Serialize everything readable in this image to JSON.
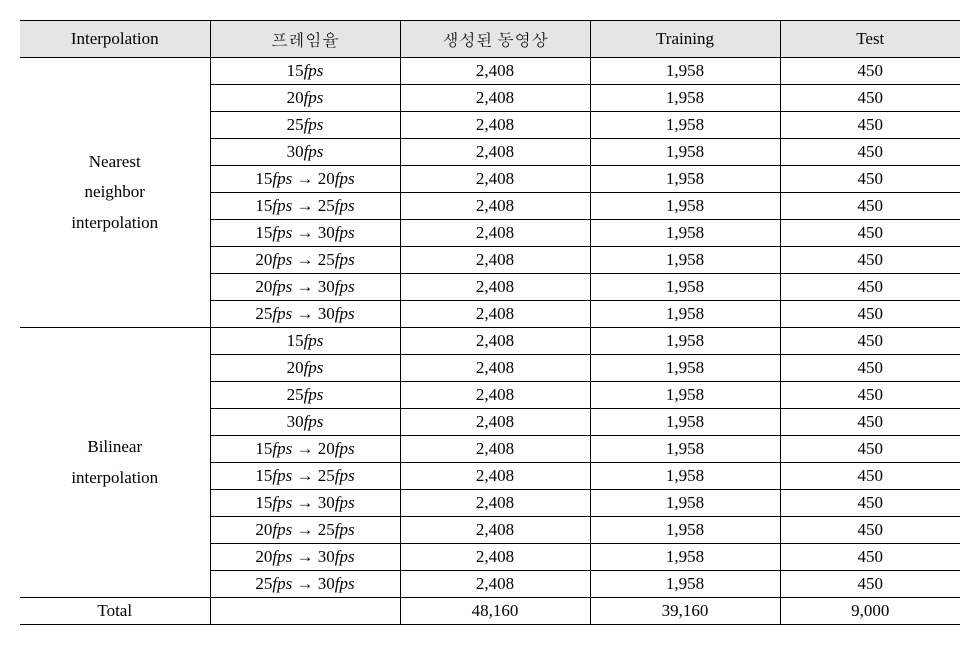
{
  "headers": {
    "interpolation": "Interpolation",
    "framerate": "프레임율",
    "generated": "생성된 동영상",
    "training": "Training",
    "test": "Test"
  },
  "groups": [
    {
      "label_lines": [
        "Nearest",
        "neighbor",
        "interpolation"
      ],
      "rows": [
        {
          "framerate_html": "15<span class='fps'>fps</span>",
          "generated": "2,408",
          "training": "1,958",
          "test": "450"
        },
        {
          "framerate_html": "20<span class='fps'>fps</span>",
          "generated": "2,408",
          "training": "1,958",
          "test": "450"
        },
        {
          "framerate_html": "25<span class='fps'>fps</span>",
          "generated": "2,408",
          "training": "1,958",
          "test": "450"
        },
        {
          "framerate_html": "30<span class='fps'>fps</span>",
          "generated": "2,408",
          "training": "1,958",
          "test": "450"
        },
        {
          "framerate_html": "15<span class='fps'>fps</span> → 20<span class='fps'>fps</span>",
          "generated": "2,408",
          "training": "1,958",
          "test": "450"
        },
        {
          "framerate_html": "15<span class='fps'>fps</span> → 25<span class='fps'>fps</span>",
          "generated": "2,408",
          "training": "1,958",
          "test": "450"
        },
        {
          "framerate_html": "15<span class='fps'>fps</span> → 30<span class='fps'>fps</span>",
          "generated": "2,408",
          "training": "1,958",
          "test": "450"
        },
        {
          "framerate_html": "20<span class='fps'>fps</span> → 25<span class='fps'>fps</span>",
          "generated": "2,408",
          "training": "1,958",
          "test": "450"
        },
        {
          "framerate_html": "20<span class='fps'>fps</span> → 30<span class='fps'>fps</span>",
          "generated": "2,408",
          "training": "1,958",
          "test": "450"
        },
        {
          "framerate_html": "25<span class='fps'>fps</span> → 30<span class='fps'>fps</span>",
          "generated": "2,408",
          "training": "1,958",
          "test": "450"
        }
      ]
    },
    {
      "label_lines": [
        "Bilinear",
        "interpolation"
      ],
      "rows": [
        {
          "framerate_html": "15<span class='fps'>fps</span>",
          "generated": "2,408",
          "training": "1,958",
          "test": "450"
        },
        {
          "framerate_html": "20<span class='fps'>fps</span>",
          "generated": "2,408",
          "training": "1,958",
          "test": "450"
        },
        {
          "framerate_html": "25<span class='fps'>fps</span>",
          "generated": "2,408",
          "training": "1,958",
          "test": "450"
        },
        {
          "framerate_html": "30<span class='fps'>fps</span>",
          "generated": "2,408",
          "training": "1,958",
          "test": "450"
        },
        {
          "framerate_html": "15<span class='fps'>fps</span> → 20<span class='fps'>fps</span>",
          "generated": "2,408",
          "training": "1,958",
          "test": "450"
        },
        {
          "framerate_html": "15<span class='fps'>fps</span> → 25<span class='fps'>fps</span>",
          "generated": "2,408",
          "training": "1,958",
          "test": "450"
        },
        {
          "framerate_html": "15<span class='fps'>fps</span> → 30<span class='fps'>fps</span>",
          "generated": "2,408",
          "training": "1,958",
          "test": "450"
        },
        {
          "framerate_html": "20<span class='fps'>fps</span> → 25<span class='fps'>fps</span>",
          "generated": "2,408",
          "training": "1,958",
          "test": "450"
        },
        {
          "framerate_html": "20<span class='fps'>fps</span> → 30<span class='fps'>fps</span>",
          "generated": "2,408",
          "training": "1,958",
          "test": "450"
        },
        {
          "framerate_html": "25<span class='fps'>fps</span> → 30<span class='fps'>fps</span>",
          "generated": "2,408",
          "training": "1,958",
          "test": "450"
        }
      ]
    }
  ],
  "total": {
    "label": "Total",
    "framerate": "",
    "generated": "48,160",
    "training": "39,160",
    "test": "9,000"
  },
  "style": {
    "header_bg": "#e5e5e5",
    "border_color": "#000000",
    "font_family": "Times New Roman / Batang",
    "font_size_pt": 13
  }
}
